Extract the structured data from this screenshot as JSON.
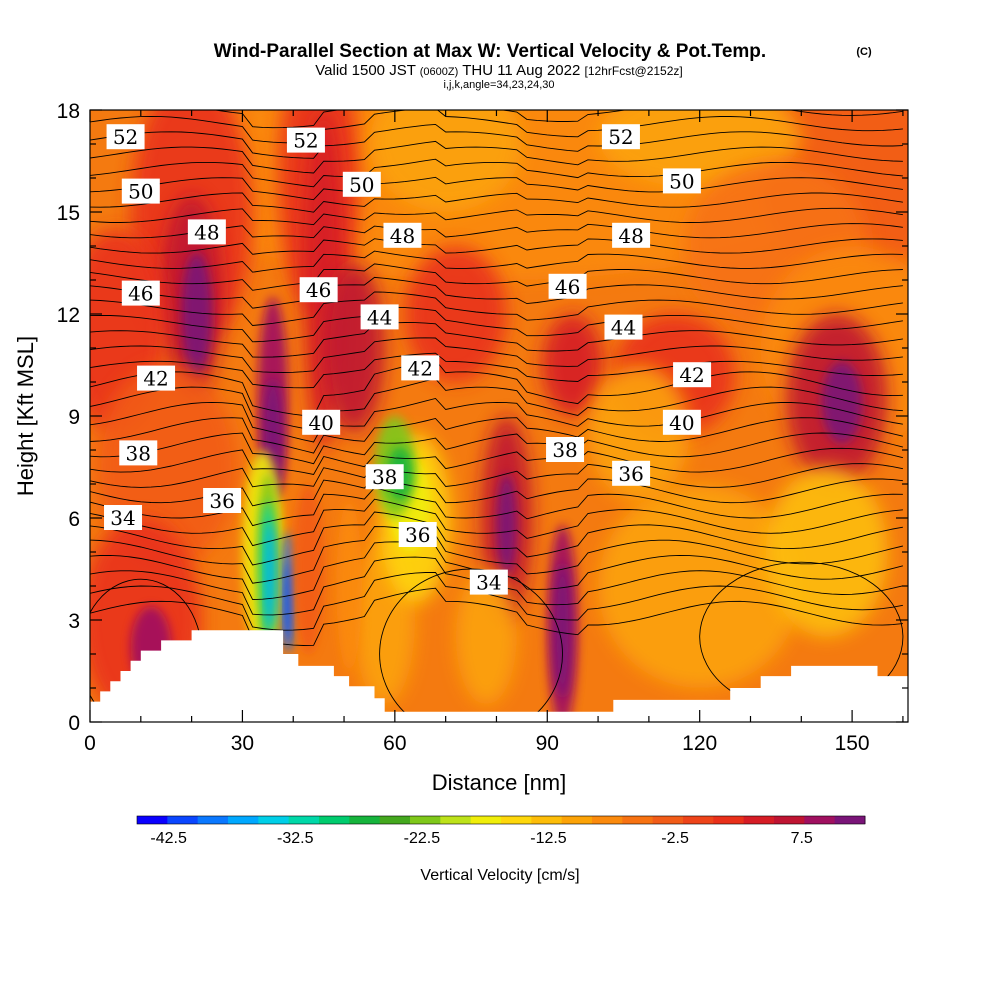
{
  "title": {
    "main": "Wind-Parallel Section at Max W: Vertical Velocity & Pot.Temp.",
    "copyright": "(C)",
    "valid_prefix": "Valid 1500 JST",
    "valid_z": "(0600Z)",
    "valid_date": "THU 11 Aug 2022",
    "forecast": "[12hrFcst@2152z]",
    "indices": "i,j,k,angle=34,23,24,30"
  },
  "chart_data": {
    "type": "heatmap",
    "xlabel": "Distance [nm]",
    "ylabel": "Height [Kft MSL]",
    "xlim": [
      0,
      161
    ],
    "ylim": [
      0,
      18
    ],
    "x_ticks": [
      0,
      30,
      60,
      90,
      120,
      150
    ],
    "y_ticks": [
      0,
      3,
      6,
      9,
      12,
      15,
      18
    ],
    "x_tick_labels": [
      "0",
      "30",
      "60",
      "90",
      "120",
      "150"
    ],
    "y_tick_labels": [
      "0",
      "3",
      "6",
      "9",
      "12",
      "15",
      "18"
    ],
    "colorbar": {
      "label": "Vertical Velocity [cm/s]",
      "tick_labels": [
        "-42.5",
        "-32.5",
        "-22.5",
        "-12.5",
        "-2.5",
        "7.5"
      ],
      "tick_values": [
        -42.5,
        -32.5,
        -22.5,
        -12.5,
        -2.5,
        7.5
      ],
      "min": -45,
      "max": 12.5,
      "step": 2.5,
      "colors": [
        "#0a00ff",
        "#0a46ff",
        "#0a78ff",
        "#00a8ff",
        "#00cfe8",
        "#00d8a8",
        "#00cc6e",
        "#16b43c",
        "#44a81e",
        "#7fc81a",
        "#bde21a",
        "#f0ee0a",
        "#fed70c",
        "#fdbd09",
        "#fca307",
        "#fb8a0d",
        "#f77212",
        "#f25c18",
        "#ee4419",
        "#e9301a",
        "#d61c25",
        "#bf1432",
        "#a01060",
        "#7a1478"
      ]
    },
    "contour_labels": [
      {
        "value": "52",
        "x": 7,
        "y": 17.2
      },
      {
        "value": "52",
        "x": 42.5,
        "y": 17.1
      },
      {
        "value": "52",
        "x": 104.5,
        "y": 17.2
      },
      {
        "value": "50",
        "x": 10,
        "y": 15.6
      },
      {
        "value": "50",
        "x": 53.5,
        "y": 15.8
      },
      {
        "value": "50",
        "x": 116.5,
        "y": 15.9
      },
      {
        "value": "48",
        "x": 23,
        "y": 14.4
      },
      {
        "value": "48",
        "x": 61.5,
        "y": 14.3
      },
      {
        "value": "48",
        "x": 106.5,
        "y": 14.3
      },
      {
        "value": "46",
        "x": 10,
        "y": 12.6
      },
      {
        "value": "46",
        "x": 45,
        "y": 12.7
      },
      {
        "value": "46",
        "x": 94,
        "y": 12.8
      },
      {
        "value": "44",
        "x": 57,
        "y": 11.9
      },
      {
        "value": "44",
        "x": 105,
        "y": 11.6
      },
      {
        "value": "42",
        "x": 13,
        "y": 10.1
      },
      {
        "value": "42",
        "x": 65,
        "y": 10.4
      },
      {
        "value": "42",
        "x": 118.5,
        "y": 10.2
      },
      {
        "value": "40",
        "x": 45.5,
        "y": 8.8
      },
      {
        "value": "40",
        "x": 116.5,
        "y": 8.8
      },
      {
        "value": "38",
        "x": 9.5,
        "y": 7.9
      },
      {
        "value": "38",
        "x": 58,
        "y": 7.2
      },
      {
        "value": "38",
        "x": 93.5,
        "y": 8.0
      },
      {
        "value": "36",
        "x": 26,
        "y": 6.5
      },
      {
        "value": "36",
        "x": 64.5,
        "y": 5.5
      },
      {
        "value": "36",
        "x": 106.5,
        "y": 7.3
      },
      {
        "value": "34",
        "x": 6.5,
        "y": 6.0
      },
      {
        "value": "34",
        "x": 78.5,
        "y": 4.1
      }
    ],
    "terrain": [
      [
        0,
        0.6
      ],
      [
        2,
        0.6
      ],
      [
        2,
        0.9
      ],
      [
        4,
        0.9
      ],
      [
        4,
        1.2
      ],
      [
        6,
        1.2
      ],
      [
        6,
        1.5
      ],
      [
        8,
        1.5
      ],
      [
        8,
        1.8
      ],
      [
        10,
        1.8
      ],
      [
        10,
        2.1
      ],
      [
        14,
        2.1
      ],
      [
        14,
        2.4
      ],
      [
        20,
        2.4
      ],
      [
        20,
        2.7
      ],
      [
        38,
        2.7
      ],
      [
        38,
        2.0
      ],
      [
        41,
        2.0
      ],
      [
        41,
        1.65
      ],
      [
        48,
        1.65
      ],
      [
        48,
        1.35
      ],
      [
        51,
        1.35
      ],
      [
        51,
        1.05
      ],
      [
        56,
        1.05
      ],
      [
        56,
        0.7
      ],
      [
        58,
        0.7
      ],
      [
        58,
        0.3
      ],
      [
        103,
        0.3
      ],
      [
        103,
        0.65
      ],
      [
        126,
        0.65
      ],
      [
        126,
        1.0
      ],
      [
        132,
        1.0
      ],
      [
        132,
        1.35
      ],
      [
        138,
        1.35
      ],
      [
        138,
        1.65
      ],
      [
        155,
        1.65
      ],
      [
        155,
        1.35
      ],
      [
        161,
        1.35
      ]
    ]
  }
}
